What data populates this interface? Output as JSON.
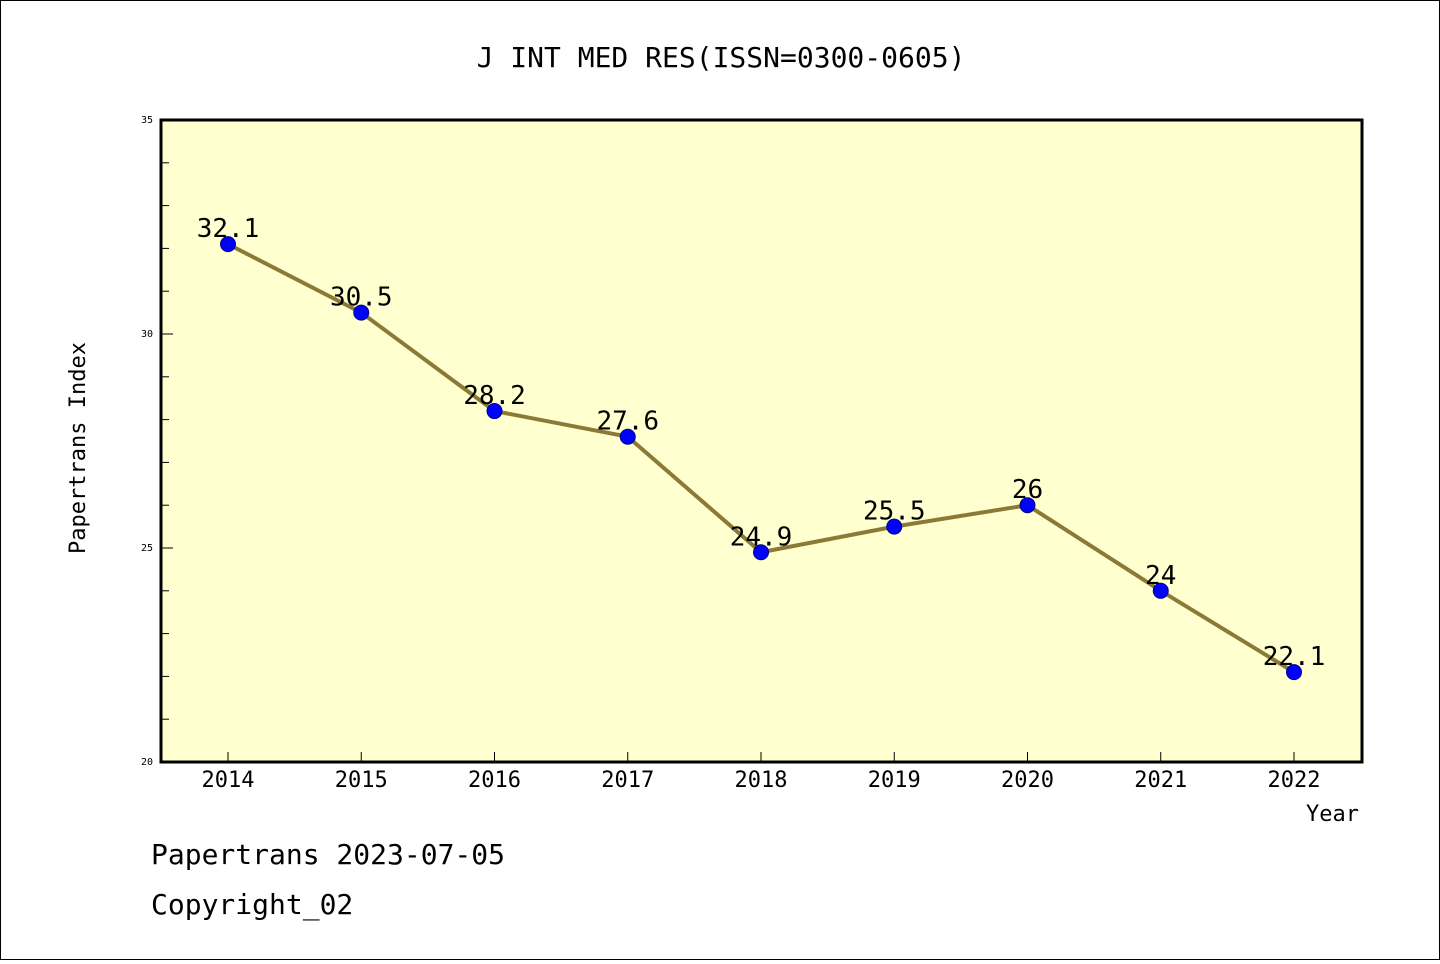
{
  "chart_data": {
    "type": "line",
    "title": "J INT MED RES(ISSN=0300-0605)",
    "xlabel": "Year",
    "ylabel": "Papertrans Index",
    "categories": [
      "2014",
      "2015",
      "2016",
      "2017",
      "2018",
      "2019",
      "2020",
      "2021",
      "2022"
    ],
    "series": [
      {
        "values": [
          32.1,
          30.5,
          28.2,
          27.6,
          24.9,
          25.5,
          26,
          24,
          22.1
        ],
        "labels": [
          "32.1",
          "30.5",
          "28.2",
          "27.6",
          "24.9",
          "25.5",
          "26",
          "24",
          "22.1"
        ]
      }
    ],
    "ylim": [
      20,
      35
    ],
    "yticks": [
      20,
      25,
      30,
      35
    ],
    "grid": false,
    "legend": "none"
  },
  "colors": {
    "plot_background": "#ffffd0",
    "line": "#8b7a35",
    "marker": "#0000ff",
    "marker_edge": "#00008b"
  },
  "footer": {
    "date_line": "Papertrans 2023-07-05",
    "copyright_line": "Copyright_02"
  }
}
